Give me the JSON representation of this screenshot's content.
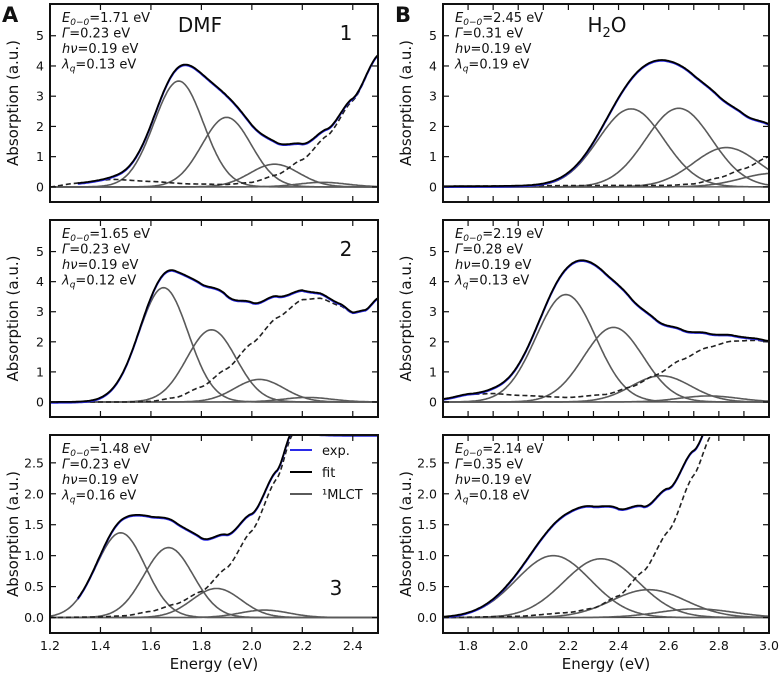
{
  "chart_data": {
    "type": "line",
    "panel_letters": [
      "A",
      "B"
    ],
    "solvents": [
      "DMF",
      "H2O"
    ],
    "legend": {
      "exp": "exp.",
      "fit": "fit",
      "mlct": "¹MLCT",
      "placement": "top-right of panel A3"
    },
    "xlabel": "Energy (eV)",
    "ylabel": "Absorption (a.u.)",
    "colors": {
      "exp": "#2a2ae8",
      "fit": "#000000",
      "mlct": "#5a5a5a",
      "background": "#222222"
    },
    "param_names": [
      {
        "main": "E",
        "sub": "0−0"
      },
      {
        "main": "Γ",
        "sub": ""
      },
      {
        "main": "hν",
        "sub": ""
      },
      {
        "main": "λ",
        "sub": "q"
      }
    ],
    "panels": [
      {
        "id": "A1",
        "column": "A",
        "number": "1",
        "xlim": [
          1.2,
          2.5
        ],
        "ylim": [
          -0.5,
          6.05
        ],
        "yticks": [
          0,
          1,
          2,
          3,
          4,
          5
        ],
        "xticks": [
          1.2,
          1.4,
          1.6,
          1.8,
          2.0,
          2.2,
          2.4
        ],
        "exp_start": 1.31,
        "params": [
          "=1.71 eV",
          "=0.23 eV",
          "=0.19 eV",
          "=0.13 eV"
        ],
        "fwhm": 0.23,
        "gaussians": [
          {
            "center": 1.71,
            "height": 3.5
          },
          {
            "center": 1.9,
            "height": 2.3
          },
          {
            "center": 2.09,
            "height": 0.75
          },
          {
            "center": 2.28,
            "height": 0.15
          }
        ],
        "background": [
          [
            1.2,
            0
          ],
          [
            1.3,
            0.12
          ],
          [
            1.45,
            0.25
          ],
          [
            1.6,
            0.18
          ],
          [
            1.75,
            0.1
          ],
          [
            1.9,
            0.08
          ],
          [
            2.0,
            0.15
          ],
          [
            2.1,
            0.4
          ],
          [
            2.2,
            0.9
          ],
          [
            2.3,
            1.7
          ],
          [
            2.4,
            2.85
          ],
          [
            2.5,
            4.35
          ]
        ]
      },
      {
        "id": "A2",
        "column": "A",
        "number": "2",
        "xlim": [
          1.2,
          2.5
        ],
        "ylim": [
          -0.5,
          6.05
        ],
        "yticks": [
          0,
          1,
          2,
          3,
          4,
          5
        ],
        "xticks": [
          1.2,
          1.4,
          1.6,
          1.8,
          2.0,
          2.2,
          2.4
        ],
        "exp_start": 1.2,
        "params": [
          "=1.65 eV",
          "=0.23 eV",
          "=0.19 eV",
          "=0.12 eV"
        ],
        "fwhm": 0.23,
        "gaussians": [
          {
            "center": 1.65,
            "height": 3.8
          },
          {
            "center": 1.84,
            "height": 2.4
          },
          {
            "center": 2.03,
            "height": 0.75
          },
          {
            "center": 2.22,
            "height": 0.15
          }
        ],
        "background": [
          [
            1.2,
            0
          ],
          [
            1.5,
            0
          ],
          [
            1.6,
            0.02
          ],
          [
            1.7,
            0.15
          ],
          [
            1.8,
            0.5
          ],
          [
            1.9,
            1.1
          ],
          [
            2.0,
            1.95
          ],
          [
            2.1,
            2.8
          ],
          [
            2.2,
            3.4
          ],
          [
            2.27,
            3.45
          ],
          [
            2.35,
            3.2
          ],
          [
            2.4,
            2.95
          ],
          [
            2.45,
            3.05
          ],
          [
            2.5,
            3.45
          ]
        ]
      },
      {
        "id": "A3",
        "column": "A",
        "number": "3",
        "xlim": [
          1.2,
          2.5
        ],
        "ylim": [
          -0.25,
          2.95
        ],
        "yticks": [
          0.0,
          0.5,
          1.0,
          1.5,
          2.0,
          2.5
        ],
        "xticks": [
          1.2,
          1.4,
          1.6,
          1.8,
          2.0,
          2.2,
          2.4
        ],
        "exp_start": 1.31,
        "params": [
          "=1.48 eV",
          "=0.23 eV",
          "=0.19 eV",
          "=0.16 eV"
        ],
        "fwhm": 0.23,
        "gaussians": [
          {
            "center": 1.48,
            "height": 1.37
          },
          {
            "center": 1.67,
            "height": 1.13
          },
          {
            "center": 1.86,
            "height": 0.47
          },
          {
            "center": 2.05,
            "height": 0.12
          }
        ],
        "background": [
          [
            1.2,
            0
          ],
          [
            1.4,
            0.01
          ],
          [
            1.5,
            0.03
          ],
          [
            1.6,
            0.1
          ],
          [
            1.7,
            0.22
          ],
          [
            1.8,
            0.42
          ],
          [
            1.9,
            0.8
          ],
          [
            2.0,
            1.4
          ],
          [
            2.1,
            2.25
          ],
          [
            2.16,
            2.95
          ]
        ]
      },
      {
        "id": "B1",
        "column": "B",
        "number": "",
        "xlim": [
          1.7,
          3.0
        ],
        "ylim": [
          -0.5,
          6.05
        ],
        "yticks": [
          0,
          1,
          2,
          3,
          4,
          5
        ],
        "xticks": [
          1.8,
          2.0,
          2.2,
          2.4,
          2.6,
          2.8,
          3.0
        ],
        "exp_start": 1.7,
        "params": [
          "=2.45 eV",
          "=0.31 eV",
          "=0.19 eV",
          "=0.19 eV"
        ],
        "fwhm": 0.31,
        "gaussians": [
          {
            "center": 2.45,
            "height": 2.58
          },
          {
            "center": 2.64,
            "height": 2.6
          },
          {
            "center": 2.83,
            "height": 1.3
          },
          {
            "center": 3.02,
            "height": 0.45
          }
        ],
        "background": [
          [
            1.7,
            0.02
          ],
          [
            2.4,
            0.05
          ],
          [
            2.6,
            0.05
          ],
          [
            2.7,
            0.1
          ],
          [
            2.8,
            0.3
          ],
          [
            2.9,
            0.6
          ],
          [
            3.0,
            1.0
          ]
        ]
      },
      {
        "id": "B2",
        "column": "B",
        "number": "",
        "xlim": [
          1.7,
          3.0
        ],
        "ylim": [
          -0.5,
          6.05
        ],
        "yticks": [
          0,
          1,
          2,
          3,
          4,
          5
        ],
        "xticks": [
          1.8,
          2.0,
          2.2,
          2.4,
          2.6,
          2.8,
          3.0
        ],
        "exp_start": 1.7,
        "params": [
          "=2.19 eV",
          "=0.28 eV",
          "=0.19 eV",
          "=0.13 eV"
        ],
        "fwhm": 0.28,
        "gaussians": [
          {
            "center": 2.19,
            "height": 3.57
          },
          {
            "center": 2.38,
            "height": 2.48
          },
          {
            "center": 2.57,
            "height": 0.87
          },
          {
            "center": 2.76,
            "height": 0.2
          }
        ],
        "background": [
          [
            1.7,
            0.1
          ],
          [
            1.8,
            0.25
          ],
          [
            1.9,
            0.28
          ],
          [
            2.0,
            0.22
          ],
          [
            2.2,
            0.15
          ],
          [
            2.35,
            0.25
          ],
          [
            2.45,
            0.5
          ],
          [
            2.55,
            0.9
          ],
          [
            2.65,
            1.4
          ],
          [
            2.75,
            1.8
          ],
          [
            2.85,
            2.02
          ],
          [
            2.95,
            2.05
          ],
          [
            3.0,
            2.0
          ]
        ]
      },
      {
        "id": "B3",
        "column": "B",
        "number": "",
        "xlim": [
          1.7,
          3.0
        ],
        "ylim": [
          -0.25,
          2.95
        ],
        "yticks": [
          0.0,
          0.5,
          1.0,
          1.5,
          2.0,
          2.5
        ],
        "xticks": [
          1.8,
          2.0,
          2.2,
          2.4,
          2.6,
          2.8,
          3.0
        ],
        "exp_start": 1.7,
        "params": [
          "=2.14 eV",
          "=0.35 eV",
          "=0.19 eV",
          "=0.18 eV"
        ],
        "fwhm": 0.35,
        "gaussians": [
          {
            "center": 2.14,
            "height": 1.0
          },
          {
            "center": 2.33,
            "height": 0.95
          },
          {
            "center": 2.52,
            "height": 0.45
          },
          {
            "center": 2.71,
            "height": 0.14
          }
        ],
        "background": [
          [
            1.7,
            0
          ],
          [
            2.0,
            0.02
          ],
          [
            2.2,
            0.08
          ],
          [
            2.3,
            0.15
          ],
          [
            2.4,
            0.35
          ],
          [
            2.5,
            0.75
          ],
          [
            2.6,
            1.4
          ],
          [
            2.7,
            2.3
          ],
          [
            2.77,
            2.95
          ]
        ]
      }
    ]
  }
}
